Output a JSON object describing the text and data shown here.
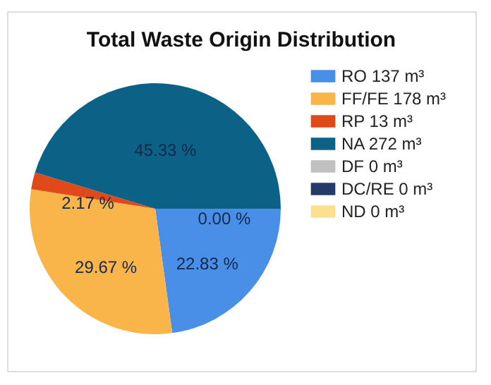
{
  "chart_data": {
    "type": "pie",
    "title": "Total Waste Origin Distribution",
    "categories": [
      "RO 137 m³",
      "FF/FE 178 m³",
      "RP 13 m³",
      "NA 272 m³",
      "DF 0 m³",
      "DC/RE 0 m³",
      "ND 0 m³"
    ],
    "values": [
      22.83,
      29.67,
      2.17,
      45.33,
      0,
      0,
      0
    ],
    "colors": [
      "#4a8fe7",
      "#f9b54a",
      "#e0491a",
      "#0b6186",
      "#c0c0c0",
      "#263a6a",
      "#fde08f"
    ],
    "value_labels": [
      "22.83 %",
      "29.67 %",
      "2.17 %",
      "45.33 %",
      "0.00 %",
      null,
      null
    ],
    "legend": "top right"
  }
}
